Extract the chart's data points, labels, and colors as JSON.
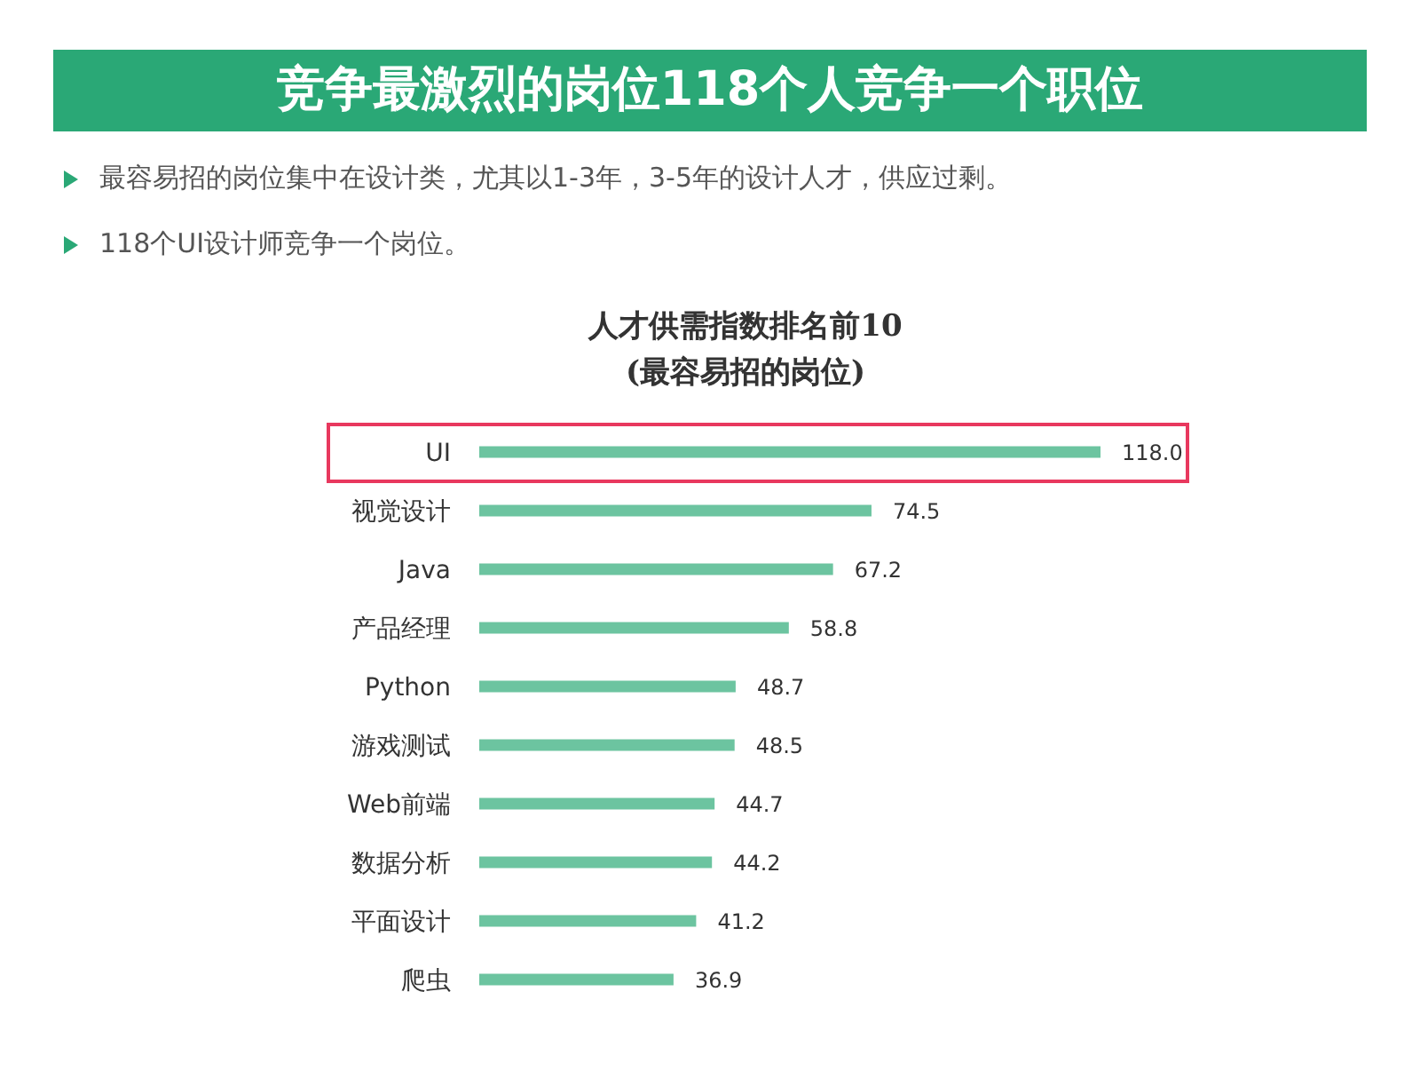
{
  "chart_data": {
    "type": "bar",
    "orientation": "horizontal",
    "title": "竞争最激烈的岗位118个人竞争一个职位",
    "subtitle": "人才供需指数排名前10\n(最容易招的岗位)",
    "annotations": [
      "最容易招的岗位集中在设计类，尤其以1-3年，3-5年的设计人才，供应过剩。",
      "118个UI设计师竞争一个岗位。"
    ],
    "categories": [
      "UI",
      "视觉设计",
      "Java",
      "产品经理",
      "Python",
      "游戏测试",
      "Web前端",
      "数据分析",
      "平面设计",
      "爬虫"
    ],
    "values": [
      118.0,
      74.5,
      67.2,
      58.8,
      48.7,
      48.5,
      44.7,
      44.2,
      41.2,
      36.9
    ],
    "value_labels": [
      "118.0",
      "74.5",
      "67.2",
      "58.8",
      "48.7",
      "48.5",
      "44.7",
      "44.2",
      "41.2",
      "36.9"
    ],
    "color": "#6cc4a0"
  }
}
